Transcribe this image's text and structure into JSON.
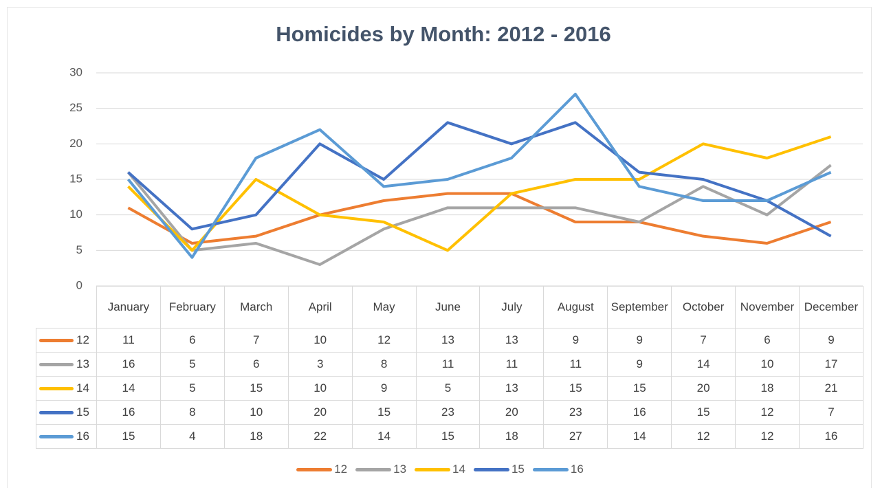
{
  "chart_data": {
    "type": "line",
    "title": "Homicides by Month: 2012 - 2016",
    "categories": [
      "January",
      "February",
      "March",
      "April",
      "May",
      "June",
      "July",
      "August",
      "September",
      "October",
      "November",
      "December"
    ],
    "series": [
      {
        "name": "12",
        "color": "#ED7D31",
        "values": [
          11,
          6,
          7,
          10,
          12,
          13,
          13,
          9,
          9,
          7,
          6,
          9
        ]
      },
      {
        "name": "13",
        "color": "#A5A5A5",
        "values": [
          16,
          5,
          6,
          3,
          8,
          11,
          11,
          11,
          9,
          14,
          10,
          17
        ]
      },
      {
        "name": "14",
        "color": "#FFC000",
        "values": [
          14,
          5,
          15,
          10,
          9,
          5,
          13,
          15,
          15,
          20,
          18,
          21
        ]
      },
      {
        "name": "15",
        "color": "#4472C4",
        "values": [
          16,
          8,
          10,
          20,
          15,
          23,
          20,
          23,
          16,
          15,
          12,
          7
        ]
      },
      {
        "name": "16",
        "color": "#5B9BD5",
        "values": [
          15,
          4,
          18,
          22,
          14,
          15,
          18,
          27,
          14,
          12,
          12,
          16
        ]
      }
    ],
    "ylim": [
      0,
      30
    ],
    "yticks": [
      0,
      5,
      10,
      15,
      20,
      25,
      30
    ],
    "grid": true,
    "legend": "bottom"
  }
}
